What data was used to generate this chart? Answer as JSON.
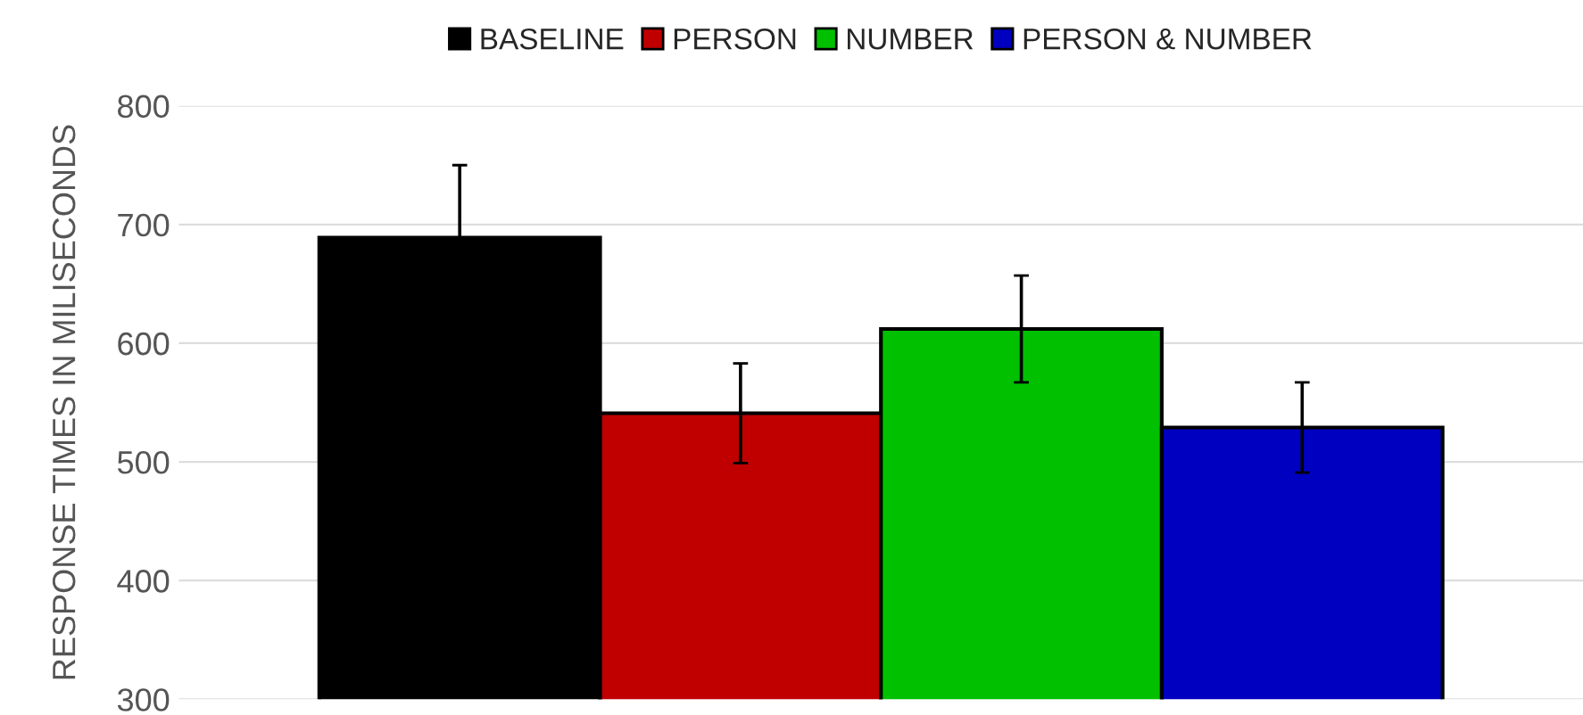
{
  "chart_data": {
    "type": "bar",
    "ylabel": "RESPONSE TIMES IN MILISECONDS",
    "categories": [
      null
    ],
    "series": [
      {
        "name": "BASELINE",
        "color": "#000000",
        "values": [
          689
        ],
        "errors": [
          [
            689,
            750
          ]
        ]
      },
      {
        "name": "PERSON",
        "color": "#c00000",
        "values": [
          541
        ],
        "errors": [
          [
            499,
            583
          ]
        ]
      },
      {
        "name": "NUMBER",
        "color": "#00c000",
        "values": [
          612
        ],
        "errors": [
          [
            567,
            657
          ]
        ]
      },
      {
        "name": "PERSON & NUMBER",
        "color": "#0000c0",
        "values": [
          529
        ],
        "errors": [
          [
            491,
            567
          ]
        ]
      }
    ],
    "ylim": [
      300,
      800
    ],
    "yticks": [
      300,
      400,
      500,
      600,
      700,
      800
    ],
    "grid": "y",
    "legend": "top"
  }
}
